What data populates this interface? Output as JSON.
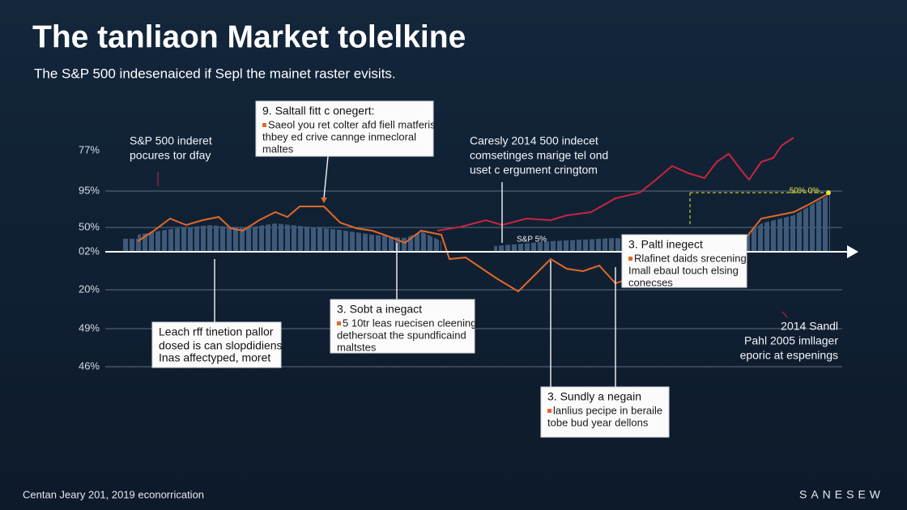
{
  "header": {
    "title": "The tanliaon Market tolelkine",
    "subtitle": "The S&P 500 indesenaiced if Sepl the mainet raster evisits."
  },
  "axis_labels": [
    "77%",
    "95%",
    "50%",
    "02%",
    "20%",
    "49%",
    "46%"
  ],
  "markers": [
    "S&P 5%",
    "50% 0%"
  ],
  "notes": [
    {
      "lines": [
        "S&P 500 inderet",
        "pocures tor dfay"
      ]
    },
    {
      "lines": [
        "Caresly 2014 500 indecet",
        "comsetinges marige tel ond",
        "uset c ergument cringtom"
      ]
    },
    {
      "lines": [
        "2014 Sandl",
        "Pahl 2005 imllager",
        "eporic at espenings"
      ]
    }
  ],
  "callouts": [
    {
      "title": "9. Saltall fitt c onegert:",
      "lines": [
        "Saeol you ret colter afd fiell matferis",
        "thbey ed crive cannge inmecloral",
        "maltes"
      ]
    },
    {
      "title": "Leach rff tinetion pallor",
      "lines": [
        "dosed is can slopdidiens",
        "Inas affectyped, moret"
      ]
    },
    {
      "title": "3. Sobt a inegact",
      "lines": [
        "5 10tr leas ruecisen cleening",
        "dethersoat the spundficaind",
        "maltstes"
      ]
    },
    {
      "title": "3. Paltl inegect",
      "lines": [
        "Rlafinet daids srecening",
        "Imall ebaul touch elsing",
        "conecses"
      ]
    },
    {
      "title": "3. Sundly a negain",
      "lines": [
        "lanlius pecipe in beraile",
        "tobe bud year dellons"
      ]
    }
  ],
  "footer": {
    "source": "Centan Jeary 201, 2019 econorrication",
    "brand": "SANESEW"
  }
}
